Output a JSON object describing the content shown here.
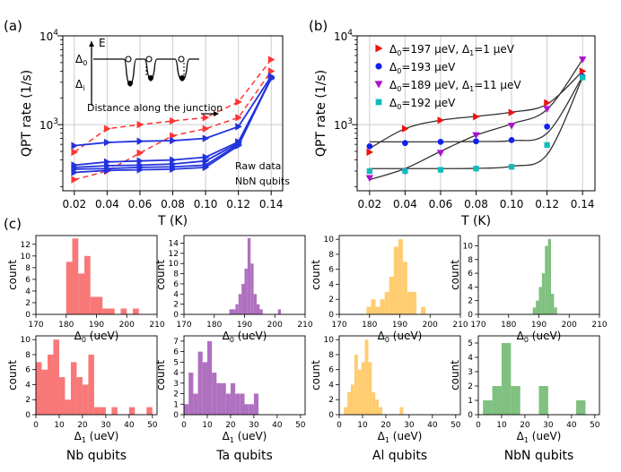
{
  "panel_labels": {
    "a": "(a)",
    "b": "(b)",
    "c": "(c)"
  },
  "chart_data": [
    {
      "id": "a",
      "type": "line",
      "xlabel": "T (K)",
      "ylabel": "QPT rate (1/s)",
      "xlim": [
        0.013,
        0.147
      ],
      "ylim": [
        180,
        10000
      ],
      "yscale": "log",
      "x_ticks": [
        "0.02",
        "0.04",
        "0.06",
        "0.08",
        "0.10",
        "0.12",
        "0.14"
      ],
      "y_ticks": [
        {
          "value": 1000,
          "base": "10",
          "exp": "3"
        },
        {
          "value": 10000,
          "base": "10",
          "exp": "4"
        }
      ],
      "annotation_lines": [
        "Raw data",
        "NbN qubits"
      ],
      "inset": {
        "ylabel": "E",
        "delta0": "Δ",
        "delta0_sub": "0",
        "deltai": "Δ",
        "deltai_sub": "i",
        "xlabel": "Distance along the junction"
      },
      "x": [
        0.02,
        0.04,
        0.06,
        0.08,
        0.1,
        0.12,
        0.14
      ],
      "series": [
        {
          "name": "red-1",
          "color": "#ff3333",
          "dash": true,
          "marker": "tri-right",
          "values": [
            490,
            900,
            1000,
            1100,
            1200,
            1800,
            5400
          ]
        },
        {
          "name": "red-2",
          "color": "#ff3333",
          "dash": true,
          "marker": "tri-right",
          "values": [
            240,
            300,
            480,
            750,
            900,
            1200,
            4000
          ]
        },
        {
          "name": "blue-1",
          "color": "#2233dd",
          "dash": false,
          "marker": "tri-right",
          "values": [
            580,
            630,
            650,
            660,
            700,
            950,
            3500
          ]
        },
        {
          "name": "blue-2",
          "color": "#2233dd",
          "dash": false,
          "marker": "tri-right",
          "values": [
            350,
            380,
            390,
            400,
            430,
            640,
            3300
          ]
        },
        {
          "name": "blue-3",
          "color": "#2233dd",
          "dash": false,
          "marker": "tri-right",
          "values": [
            330,
            345,
            350,
            360,
            390,
            620,
            3300
          ]
        },
        {
          "name": "blue-4",
          "color": "#2233dd",
          "dash": false,
          "marker": "tri-right",
          "values": [
            315,
            320,
            330,
            335,
            350,
            600,
            3400
          ]
        },
        {
          "name": "blue-5",
          "color": "#2233dd",
          "dash": false,
          "marker": "tri-right",
          "values": [
            290,
            305,
            310,
            315,
            330,
            580,
            3350
          ]
        }
      ]
    },
    {
      "id": "b",
      "type": "scatter",
      "xlabel": "T (K)",
      "ylabel": "QPT rate (1/s)",
      "xlim": [
        0.013,
        0.147
      ],
      "ylim": [
        180,
        10000
      ],
      "yscale": "log",
      "x_ticks": [
        "0.02",
        "0.04",
        "0.06",
        "0.08",
        "0.10",
        "0.12",
        "0.14"
      ],
      "y_ticks": [
        {
          "value": 1000,
          "base": "10",
          "exp": "3"
        },
        {
          "value": 10000,
          "base": "10",
          "exp": "4"
        }
      ],
      "x": [
        0.02,
        0.04,
        0.06,
        0.08,
        0.1,
        0.12,
        0.14
      ],
      "series": [
        {
          "name": "Δ0=197 μeV, Δ1=1 μeV",
          "color": "#ee1111",
          "marker": "tri-right",
          "values": [
            490,
            900,
            1120,
            1230,
            1370,
            1760,
            4000
          ],
          "fit": [
            540,
            900,
            1120,
            1240,
            1380,
            1700,
            4000
          ]
        },
        {
          "name": "Δ0=193 μeV",
          "color": "#1122ee",
          "marker": "circle",
          "values": [
            570,
            620,
            640,
            650,
            670,
            950,
            3500
          ],
          "fit": [
            640,
            640,
            640,
            645,
            660,
            800,
            3500
          ]
        },
        {
          "name": "Δ0=189 μeV, Δ1=11 μeV",
          "color": "#aa11cc",
          "marker": "tri-down",
          "values": [
            250,
            300,
            480,
            760,
            970,
            1500,
            5400
          ],
          "fit": [
            240,
            320,
            500,
            760,
            1020,
            1480,
            5400
          ]
        },
        {
          "name": "Δ0=192 μeV",
          "color": "#11bbbb",
          "marker": "square",
          "values": [
            300,
            300,
            310,
            320,
            335,
            590,
            3400
          ],
          "fit": [
            320,
            320,
            320,
            322,
            340,
            460,
            3400
          ]
        }
      ],
      "legend_parts": [
        {
          "a": "Δ",
          "as": "0",
          "b": "=197 μeV, Δ",
          "bs": "1",
          "c": "=1 μeV"
        },
        {
          "a": "Δ",
          "as": "0",
          "b": "=193 μeV",
          "bs": "",
          "c": ""
        },
        {
          "a": "Δ",
          "as": "0",
          "b": "=189 μeV, Δ",
          "bs": "1",
          "c": "=11 μeV"
        },
        {
          "a": "Δ",
          "as": "0",
          "b": "=192 μeV",
          "bs": "",
          "c": ""
        }
      ]
    },
    {
      "id": "c",
      "type": "bar",
      "ylabel": "count",
      "row_xlabels": [
        {
          "sym": "Δ",
          "sub": "0",
          "unit": " (ueV)"
        },
        {
          "sym": "Δ",
          "sub": "1",
          "unit": " (ueV)"
        }
      ],
      "column_labels": [
        "Nb qubits",
        "Ta qubits",
        "Al qubits",
        "NbN qubits"
      ],
      "histograms": [
        {
          "id": "nb-d0",
          "color": "#f87878",
          "xlim": [
            170,
            210
          ],
          "x_ticks": [
            170,
            180,
            190,
            200,
            210
          ],
          "ylim": [
            0,
            13.5
          ],
          "y_ticks": [
            0,
            2,
            4,
            6,
            8,
            10,
            12
          ],
          "bin_width": 2,
          "bins": [
            [
              180,
              9
            ],
            [
              182,
              13
            ],
            [
              184,
              7
            ],
            [
              186,
              10
            ],
            [
              188,
              3
            ],
            [
              190,
              3
            ],
            [
              192,
              1
            ],
            [
              194,
              1
            ],
            [
              198,
              1
            ],
            [
              202,
              1
            ]
          ]
        },
        {
          "id": "ta-d0",
          "color": "#b070c0",
          "xlim": [
            170,
            210
          ],
          "x_ticks": [
            170,
            180,
            190,
            200,
            210
          ],
          "ylim": [
            0,
            15.5
          ],
          "y_ticks": [
            0,
            2,
            4,
            6,
            8,
            10,
            12,
            14
          ],
          "bin_width": 1,
          "bins": [
            [
              185,
              1
            ],
            [
              186,
              1
            ],
            [
              187,
              2
            ],
            [
              188,
              4
            ],
            [
              189,
              6
            ],
            [
              190,
              9
            ],
            [
              191,
              15
            ],
            [
              192,
              10
            ],
            [
              193,
              4
            ],
            [
              194,
              2
            ],
            [
              195,
              1
            ],
            [
              201,
              1
            ]
          ]
        },
        {
          "id": "al-d0",
          "color": "#ffcc70",
          "xlim": [
            170,
            210
          ],
          "x_ticks": [
            170,
            180,
            190,
            200,
            210
          ],
          "ylim": [
            0,
            10.5
          ],
          "y_ticks": [
            0,
            2,
            4,
            6,
            8,
            10
          ],
          "bin_width": 1.5,
          "bins": [
            [
              179,
              1
            ],
            [
              180.5,
              2
            ],
            [
              182,
              1
            ],
            [
              183.5,
              2
            ],
            [
              185,
              3
            ],
            [
              186.5,
              5
            ],
            [
              188,
              9
            ],
            [
              189.5,
              10
            ],
            [
              191,
              7
            ],
            [
              192.5,
              3
            ],
            [
              194,
              3
            ],
            [
              197,
              1
            ]
          ]
        },
        {
          "id": "nbn-d0",
          "color": "#80c080",
          "xlim": [
            170,
            210
          ],
          "x_ticks": [
            170,
            180,
            190,
            200,
            210
          ],
          "ylim": [
            0,
            11.5
          ],
          "y_ticks": [
            0,
            2,
            4,
            6,
            8,
            10
          ],
          "bin_width": 1,
          "bins": [
            [
              188,
              1
            ],
            [
              189,
              2
            ],
            [
              190,
              4
            ],
            [
              191,
              6
            ],
            [
              192,
              10
            ],
            [
              193,
              11
            ],
            [
              194,
              3
            ],
            [
              195,
              1
            ]
          ]
        },
        {
          "id": "nb-d1",
          "color": "#f87878",
          "xlim": [
            0,
            52
          ],
          "x_ticks": [
            0,
            10,
            20,
            30,
            40,
            50
          ],
          "ylim": [
            0,
            10.5
          ],
          "y_ticks": [
            0,
            2,
            4,
            6,
            8,
            10
          ],
          "bin_width": 2.5,
          "bins": [
            [
              0,
              7
            ],
            [
              2.5,
              6
            ],
            [
              5,
              8
            ],
            [
              7.5,
              10
            ],
            [
              10,
              5
            ],
            [
              12.5,
              2
            ],
            [
              15,
              7
            ],
            [
              17.5,
              5
            ],
            [
              20,
              4
            ],
            [
              22.5,
              8
            ],
            [
              25,
              1
            ],
            [
              27.5,
              1
            ],
            [
              32.5,
              1
            ],
            [
              40,
              1
            ],
            [
              47.5,
              1
            ]
          ]
        },
        {
          "id": "ta-d1",
          "color": "#b070c0",
          "xlim": [
            0,
            52
          ],
          "x_ticks": [
            0,
            10,
            20,
            30,
            40,
            50
          ],
          "ylim": [
            0,
            7.5
          ],
          "y_ticks": [
            0,
            1,
            2,
            3,
            4,
            5,
            6,
            7
          ],
          "bin_width": 2,
          "bins": [
            [
              0,
              1
            ],
            [
              2,
              4
            ],
            [
              4,
              2
            ],
            [
              6,
              6
            ],
            [
              8,
              5
            ],
            [
              10,
              7
            ],
            [
              12,
              4
            ],
            [
              14,
              3
            ],
            [
              16,
              3
            ],
            [
              18,
              2
            ],
            [
              20,
              3
            ],
            [
              22,
              2
            ],
            [
              24,
              2
            ],
            [
              26,
              1
            ],
            [
              28,
              1
            ],
            [
              30,
              2
            ]
          ]
        },
        {
          "id": "al-d1",
          "color": "#ffcc70",
          "xlim": [
            0,
            52
          ],
          "x_ticks": [
            0,
            10,
            20,
            30,
            40,
            50
          ],
          "ylim": [
            0,
            10.5
          ],
          "y_ticks": [
            0,
            2,
            4,
            6,
            8,
            10
          ],
          "bin_width": 1.5,
          "bins": [
            [
              2,
              1
            ],
            [
              3.5,
              3
            ],
            [
              5,
              4
            ],
            [
              6.5,
              8
            ],
            [
              8,
              6
            ],
            [
              9.5,
              7
            ],
            [
              11,
              10
            ],
            [
              12.5,
              7
            ],
            [
              14,
              3
            ],
            [
              15.5,
              2
            ],
            [
              17,
              1
            ],
            [
              26,
              1
            ]
          ]
        },
        {
          "id": "nbn-d1",
          "color": "#80c080",
          "xlim": [
            0,
            52
          ],
          "x_ticks": [
            0,
            10,
            20,
            30,
            40,
            50
          ],
          "ylim": [
            0,
            5.5
          ],
          "y_ticks": [
            0,
            1,
            2,
            3,
            4,
            5
          ],
          "bin_width": 4,
          "bins": [
            [
              2,
              1
            ],
            [
              6,
              2
            ],
            [
              10,
              5
            ],
            [
              14,
              2
            ],
            [
              26,
              2
            ],
            [
              42,
              1
            ]
          ]
        }
      ]
    }
  ]
}
